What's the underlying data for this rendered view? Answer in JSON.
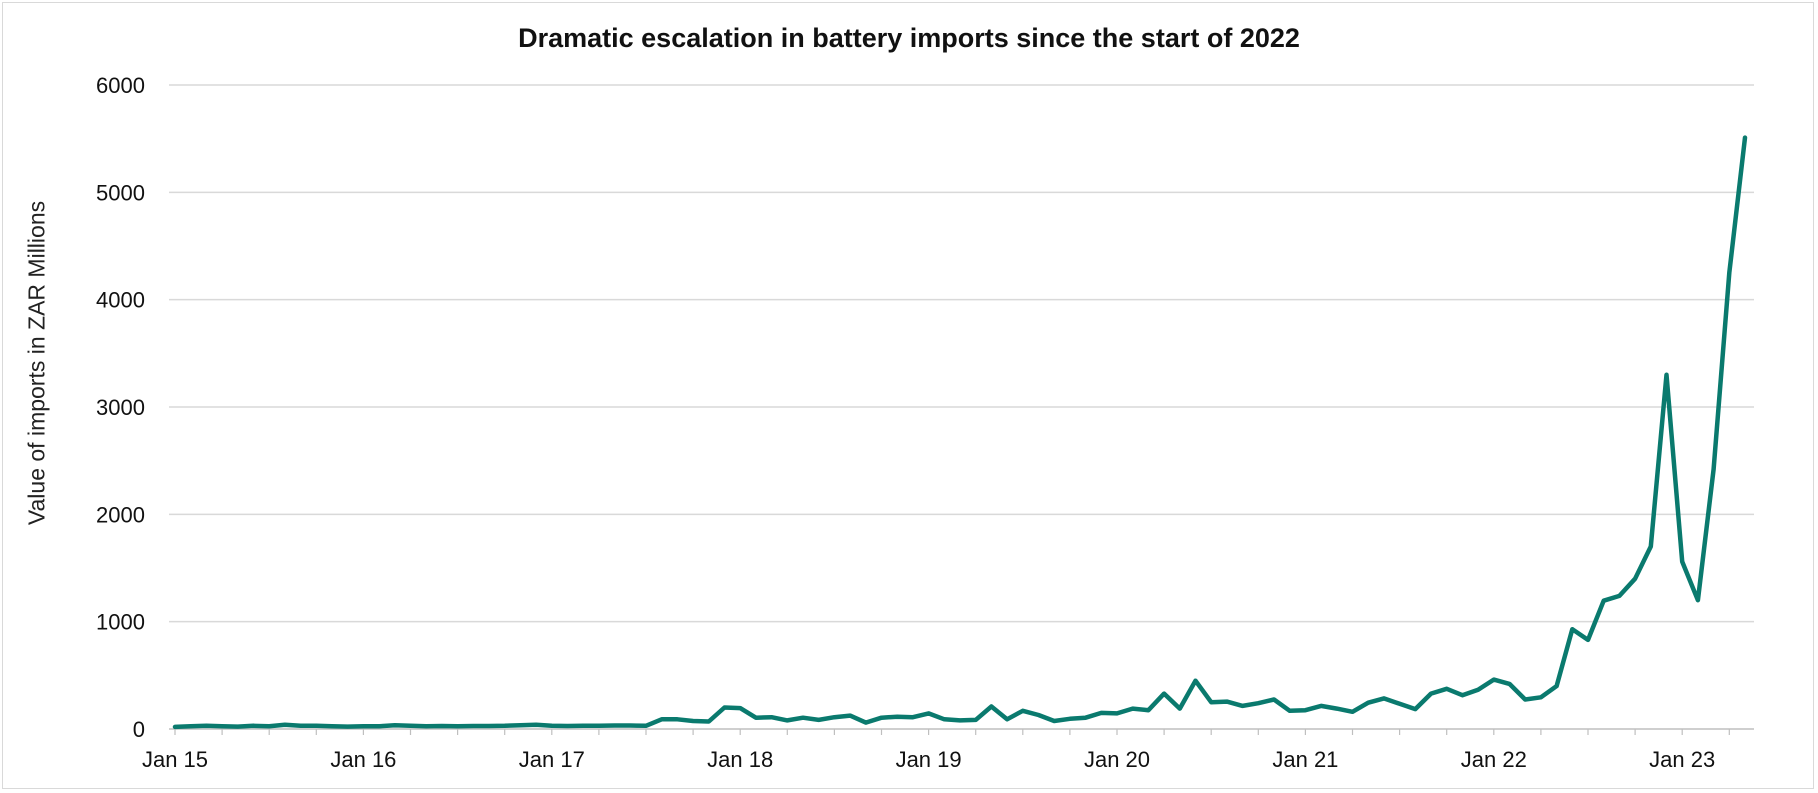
{
  "chart_data": {
    "type": "line",
    "title": "Dramatic escalation in battery imports since the start of 2022",
    "xlabel": "",
    "ylabel": "Value of imports in ZAR Millions",
    "ylim": [
      0,
      6000
    ],
    "yticks": [
      0,
      1000,
      2000,
      3000,
      4000,
      5000,
      6000
    ],
    "xtick_labels": [
      "Jan 15",
      "Jan 16",
      "Jan 17",
      "Jan 18",
      "Jan 19",
      "Jan 20",
      "Jan 21",
      "Jan 22",
      "Jan 23"
    ],
    "x_start": "2015-01",
    "x_frequency": "monthly",
    "grid": true,
    "legend": "none",
    "series": [
      {
        "color": "#0a7a6e",
        "values": [
          20,
          25,
          30,
          25,
          22,
          30,
          25,
          40,
          30,
          30,
          25,
          22,
          25,
          25,
          35,
          30,
          25,
          28,
          25,
          28,
          28,
          30,
          35,
          40,
          30,
          28,
          30,
          30,
          33,
          33,
          30,
          90,
          90,
          75,
          70,
          200,
          195,
          105,
          110,
          80,
          105,
          85,
          110,
          125,
          60,
          105,
          115,
          110,
          145,
          90,
          80,
          85,
          210,
          90,
          170,
          130,
          75,
          95,
          105,
          150,
          145,
          190,
          175,
          330,
          190,
          450,
          250,
          255,
          215,
          240,
          275,
          170,
          175,
          215,
          190,
          160,
          245,
          285,
          235,
          185,
          330,
          375,
          315,
          365,
          460,
          420,
          275,
          295,
          400,
          930,
          830,
          1195,
          1240,
          1400,
          1700,
          3300,
          1560,
          1200,
          2420,
          4250,
          5510
        ]
      }
    ]
  }
}
